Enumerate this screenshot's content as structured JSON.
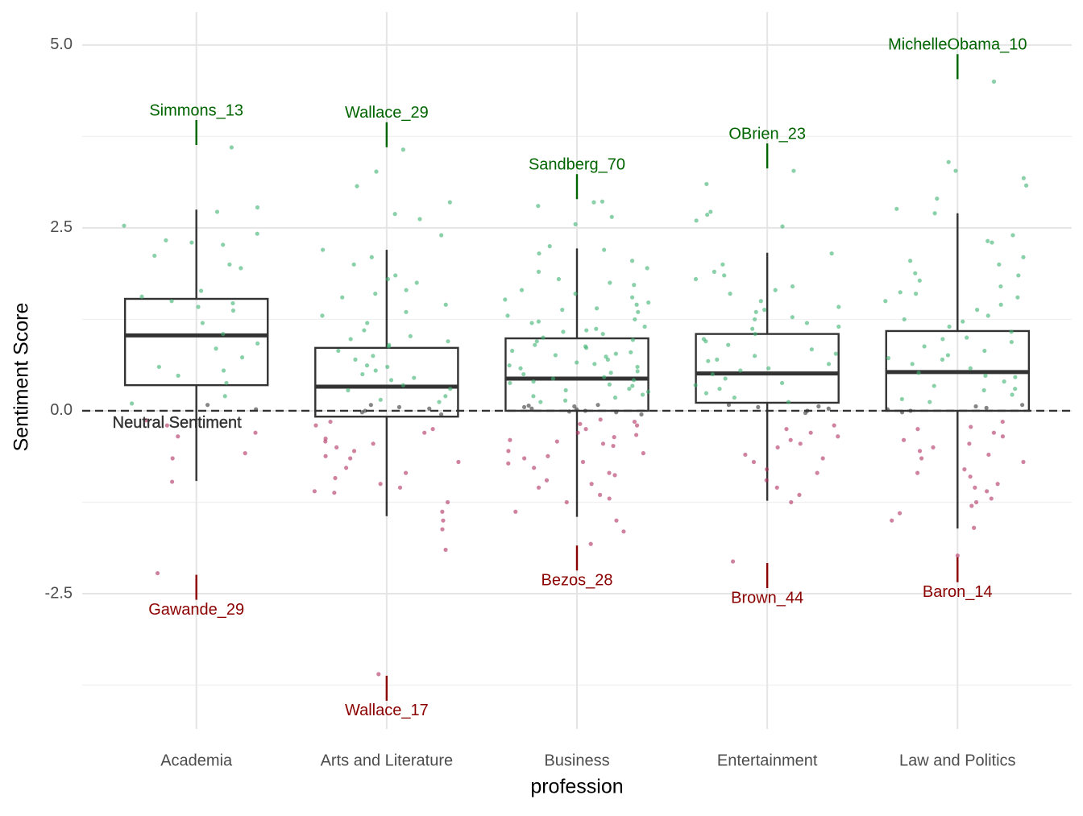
{
  "chart_data": {
    "type": "boxplot",
    "x_label": "profession",
    "y_label": "Sentiment Score",
    "categories": [
      "Academia",
      "Arts and Literature",
      "Business",
      "Entertainment",
      "Law and Politics"
    ],
    "ylim": [
      -4.35,
      5.45
    ],
    "yticks": [
      {
        "value": -2.5,
        "label": "-2.5"
      },
      {
        "value": 0,
        "label": "0.0"
      },
      {
        "value": 2.5,
        "label": "2.5"
      },
      {
        "value": 5,
        "label": "5.0"
      }
    ],
    "minor_yticks": [
      -3.75,
      -1.25,
      1.25,
      3.75
    ],
    "grid": true,
    "box_color": "#333333",
    "boxes": [
      {
        "whislo": -0.96,
        "q1": 0.35,
        "median": 1.03,
        "q3": 1.53,
        "whishi": 2.75
      },
      {
        "whislo": -1.44,
        "q1": -0.08,
        "median": 0.33,
        "q3": 0.86,
        "whishi": 2.2
      },
      {
        "whislo": -1.45,
        "q1": 0.0,
        "median": 0.44,
        "q3": 0.99,
        "whishi": 2.22
      },
      {
        "whislo": -1.23,
        "q1": 0.11,
        "median": 0.51,
        "q3": 1.05,
        "whishi": 2.16
      },
      {
        "whislo": -1.61,
        "q1": 0.0,
        "median": 0.53,
        "q3": 1.09,
        "whishi": 2.7
      }
    ],
    "point_colors": {
      "positive": "#3cb371",
      "neutral": "#333333",
      "negative": "#b03060"
    },
    "points": [
      {
        "positive": [
          2.53,
          2.42,
          2.33,
          2.12,
          2.0,
          1.64,
          1.5,
          1.47,
          1.37,
          1.2,
          1.05,
          0.85,
          0.73,
          0.6,
          0.48,
          0.38,
          0.2,
          0.1,
          2.27,
          2.3,
          2.78,
          1.95,
          1.56,
          1.42,
          0.92,
          0.55,
          2.72
        ],
        "neutral": [
          0.08,
          0.02
        ],
        "negative": [
          -0.3,
          -0.35,
          -0.65,
          -0.58,
          -0.97,
          -0.13,
          -0.2
        ]
      },
      {
        "positive": [
          3.27,
          3.07,
          2.85,
          2.69,
          2.62,
          2.4,
          2.2,
          2.0,
          1.85,
          1.8,
          1.6,
          1.55,
          1.45,
          1.3,
          1.2,
          1.1,
          1.02,
          0.95,
          0.88,
          0.82,
          0.75,
          0.7,
          0.62,
          0.55,
          0.5,
          0.42,
          0.35,
          0.28,
          0.2,
          0.15,
          0.12,
          1.65,
          1.35,
          0.9,
          0.6,
          0.45,
          0.3,
          2.1,
          1.75,
          0.98
        ],
        "neutral": [
          0.05,
          0.0,
          -0.02,
          0.08,
          0.03,
          -0.05
        ],
        "negative": [
          -0.15,
          -0.25,
          -0.38,
          -0.45,
          -0.5,
          -0.62,
          -0.7,
          -0.78,
          -0.85,
          -0.92,
          -1.0,
          -1.05,
          -1.12,
          -1.25,
          -1.38,
          -1.5,
          -1.62,
          -1.9,
          -0.3,
          -0.55,
          -0.2,
          -0.65,
          -0.42,
          -1.1
        ]
      },
      {
        "positive": [
          2.85,
          2.8,
          2.65,
          2.55,
          2.2,
          2.15,
          2.05,
          1.9,
          1.8,
          1.72,
          1.65,
          1.6,
          1.52,
          1.45,
          1.4,
          1.35,
          1.3,
          1.25,
          1.2,
          1.15,
          1.1,
          1.05,
          1.0,
          0.95,
          0.9,
          0.86,
          0.82,
          0.78,
          0.74,
          0.7,
          0.66,
          0.62,
          0.58,
          0.54,
          0.5,
          0.46,
          0.42,
          0.38,
          0.34,
          0.3,
          0.26,
          0.22,
          0.18,
          0.14,
          0.12,
          1.75,
          1.55,
          1.38,
          1.22,
          1.08,
          0.97,
          0.88,
          0.76,
          0.64,
          0.52,
          0.44,
          0.36,
          0.28,
          0.2,
          2.25,
          1.95,
          1.48,
          1.12,
          0.8,
          0.6,
          0.4
        ],
        "neutral": [
          0.08,
          0.05,
          0.02,
          0.0,
          -0.02,
          -0.05,
          0.06,
          0.03,
          -0.01,
          0.07
        ],
        "negative": [
          -0.12,
          -0.18,
          -0.25,
          -0.3,
          -0.36,
          -0.42,
          -0.48,
          -0.55,
          -0.62,
          -0.7,
          -0.78,
          -0.85,
          -0.95,
          -1.05,
          -1.15,
          -1.25,
          -1.38,
          -1.5,
          -1.65,
          -0.2,
          -0.33,
          -0.45,
          -0.58,
          -0.72,
          -0.88,
          -1.0,
          -1.2,
          -0.15,
          -0.4,
          -0.65
        ]
      },
      {
        "positive": [
          3.1,
          2.72,
          2.68,
          2.6,
          2.52,
          2.15,
          2.0,
          1.9,
          1.85,
          1.7,
          1.6,
          1.5,
          1.42,
          1.35,
          1.28,
          1.2,
          1.12,
          1.05,
          0.98,
          0.9,
          0.84,
          0.78,
          0.7,
          0.64,
          0.58,
          0.5,
          0.44,
          0.38,
          0.3,
          0.24,
          0.18,
          0.12,
          1.65,
          1.38,
          1.15,
          0.95,
          0.75,
          0.55,
          0.35,
          1.8,
          1.25,
          0.68
        ],
        "neutral": [
          0.08,
          0.03,
          0.0,
          -0.03,
          0.05,
          0.06
        ],
        "negative": [
          -0.2,
          -0.3,
          -0.4,
          -0.5,
          -0.6,
          -0.7,
          -0.8,
          -0.95,
          -1.05,
          -1.15,
          -1.25,
          -0.25,
          -0.45,
          -0.65,
          -0.85,
          -0.35
        ]
      },
      {
        "positive": [
          3.4,
          3.28,
          3.18,
          3.08,
          2.9,
          2.76,
          2.7,
          2.4,
          2.32,
          2.3,
          2.1,
          2.0,
          1.88,
          1.78,
          1.7,
          1.62,
          1.55,
          1.45,
          1.38,
          1.3,
          1.22,
          1.15,
          1.08,
          1.0,
          0.94,
          0.88,
          0.82,
          0.76,
          0.7,
          0.64,
          0.58,
          0.52,
          0.46,
          0.4,
          0.34,
          0.28,
          0.22,
          0.16,
          0.12,
          1.85,
          1.5,
          1.25,
          0.98,
          0.72,
          0.48,
          0.3,
          2.05,
          1.6
        ],
        "neutral": [
          0.08,
          0.04,
          0.0,
          -0.02,
          0.06,
          0.02
        ],
        "negative": [
          -0.15,
          -0.22,
          -0.3,
          -0.4,
          -0.5,
          -0.6,
          -0.7,
          -0.8,
          -0.9,
          -1.0,
          -1.1,
          -1.2,
          -1.3,
          -1.4,
          -1.5,
          -1.6,
          -0.25,
          -0.45,
          -0.65,
          -0.85,
          -1.05,
          -1.25,
          -0.35,
          -0.55
        ]
      }
    ],
    "annotation_colors": {
      "positive": "#006400",
      "negative": "#8b0000"
    },
    "annotations": [
      {
        "category": 0,
        "label": "Simmons_13",
        "value": 3.6
      },
      {
        "category": 0,
        "label": "Gawande_29",
        "value": -2.22
      },
      {
        "category": 1,
        "label": "Wallace_29",
        "value": 3.57
      },
      {
        "category": 1,
        "label": "Wallace_17",
        "value": -3.6
      },
      {
        "category": 2,
        "label": "Sandberg_70",
        "value": 2.86
      },
      {
        "category": 2,
        "label": "Bezos_28",
        "value": -1.82
      },
      {
        "category": 3,
        "label": "OBrien_23",
        "value": 3.28
      },
      {
        "category": 3,
        "label": "Brown_44",
        "value": -2.06
      },
      {
        "category": 4,
        "label": "MichelleObama_10",
        "value": 4.5
      },
      {
        "category": 4,
        "label": "Baron_14",
        "value": -1.98
      }
    ],
    "reference_line": {
      "value": 0,
      "label": "Neutral Sentiment"
    }
  }
}
